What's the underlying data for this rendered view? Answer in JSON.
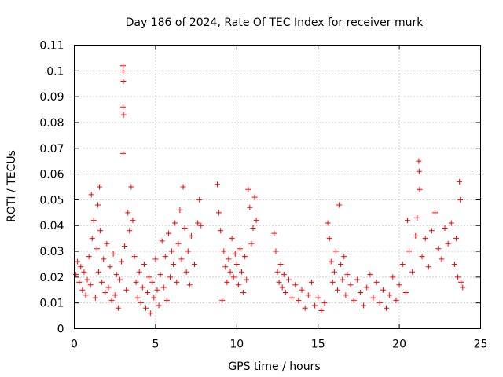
{
  "chart_data": {
    "type": "scatter",
    "title": "Day 186 of 2024, Rate Of TEC Index for receiver murk",
    "xlabel": "GPS time / hours",
    "ylabel": "ROTI / TECUs",
    "xlim": [
      0,
      25
    ],
    "ylim": [
      0,
      0.11
    ],
    "xticks": [
      "0",
      "5",
      "10",
      "15",
      "20",
      "25"
    ],
    "yticks": [
      "0",
      "0.01",
      "0.02",
      "0.03",
      "0.04",
      "0.05",
      "0.06",
      "0.07",
      "0.08",
      "0.09",
      "0.1",
      "0.11"
    ],
    "grid": true,
    "marker": "+",
    "color": "#ff0000",
    "points": [
      [
        0.1,
        0.021
      ],
      [
        0.2,
        0.026
      ],
      [
        0.3,
        0.018
      ],
      [
        0.4,
        0.024
      ],
      [
        0.5,
        0.015
      ],
      [
        0.6,
        0.022
      ],
      [
        0.7,
        0.013
      ],
      [
        0.8,
        0.019
      ],
      [
        0.9,
        0.028
      ],
      [
        1.0,
        0.017
      ],
      [
        1.05,
        0.052
      ],
      [
        1.1,
        0.035
      ],
      [
        1.2,
        0.042
      ],
      [
        1.3,
        0.012
      ],
      [
        1.4,
        0.031
      ],
      [
        1.45,
        0.048
      ],
      [
        1.5,
        0.022
      ],
      [
        1.55,
        0.055
      ],
      [
        1.6,
        0.038
      ],
      [
        1.7,
        0.018
      ],
      [
        1.8,
        0.027
      ],
      [
        1.9,
        0.014
      ],
      [
        2.0,
        0.033
      ],
      [
        2.1,
        0.016
      ],
      [
        2.2,
        0.024
      ],
      [
        2.3,
        0.011
      ],
      [
        2.4,
        0.029
      ],
      [
        2.5,
        0.013
      ],
      [
        2.6,
        0.021
      ],
      [
        2.7,
        0.008
      ],
      [
        2.8,
        0.019
      ],
      [
        2.9,
        0.026
      ],
      [
        3.0,
        0.102
      ],
      [
        3.0,
        0.1
      ],
      [
        3.02,
        0.096
      ],
      [
        3.0,
        0.086
      ],
      [
        3.03,
        0.083
      ],
      [
        3.0,
        0.068
      ],
      [
        3.1,
        0.032
      ],
      [
        3.2,
        0.015
      ],
      [
        3.3,
        0.045
      ],
      [
        3.4,
        0.038
      ],
      [
        3.5,
        0.055
      ],
      [
        3.6,
        0.042
      ],
      [
        3.7,
        0.028
      ],
      [
        3.8,
        0.018
      ],
      [
        3.9,
        0.012
      ],
      [
        4.0,
        0.022
      ],
      [
        4.1,
        0.01
      ],
      [
        4.2,
        0.016
      ],
      [
        4.3,
        0.025
      ],
      [
        4.4,
        0.008
      ],
      [
        4.5,
        0.014
      ],
      [
        4.6,
        0.02
      ],
      [
        4.7,
        0.006
      ],
      [
        4.8,
        0.018
      ],
      [
        4.9,
        0.012
      ],
      [
        5.0,
        0.027
      ],
      [
        5.1,
        0.015
      ],
      [
        5.2,
        0.009
      ],
      [
        5.3,
        0.021
      ],
      [
        5.4,
        0.034
      ],
      [
        5.5,
        0.016
      ],
      [
        5.6,
        0.028
      ],
      [
        5.7,
        0.011
      ],
      [
        5.8,
        0.037
      ],
      [
        5.9,
        0.02
      ],
      [
        6.0,
        0.03
      ],
      [
        6.1,
        0.025
      ],
      [
        6.2,
        0.041
      ],
      [
        6.3,
        0.018
      ],
      [
        6.4,
        0.033
      ],
      [
        6.5,
        0.046
      ],
      [
        6.6,
        0.027
      ],
      [
        6.7,
        0.055
      ],
      [
        6.8,
        0.039
      ],
      [
        6.9,
        0.022
      ],
      [
        7.0,
        0.03
      ],
      [
        7.1,
        0.017
      ],
      [
        7.2,
        0.036
      ],
      [
        7.4,
        0.025
      ],
      [
        7.6,
        0.041
      ],
      [
        7.7,
        0.05
      ],
      [
        7.8,
        0.04
      ],
      [
        8.8,
        0.056
      ],
      [
        8.9,
        0.045
      ],
      [
        9.0,
        0.038
      ],
      [
        9.1,
        0.011
      ],
      [
        9.2,
        0.03
      ],
      [
        9.3,
        0.024
      ],
      [
        9.4,
        0.018
      ],
      [
        9.5,
        0.027
      ],
      [
        9.6,
        0.022
      ],
      [
        9.7,
        0.035
      ],
      [
        9.8,
        0.02
      ],
      [
        9.9,
        0.029
      ],
      [
        10.0,
        0.025
      ],
      [
        10.1,
        0.017
      ],
      [
        10.2,
        0.031
      ],
      [
        10.3,
        0.022
      ],
      [
        10.4,
        0.014
      ],
      [
        10.5,
        0.028
      ],
      [
        10.6,
        0.019
      ],
      [
        10.7,
        0.054
      ],
      [
        10.8,
        0.047
      ],
      [
        10.9,
        0.033
      ],
      [
        11.0,
        0.039
      ],
      [
        11.1,
        0.051
      ],
      [
        11.2,
        0.042
      ],
      [
        12.3,
        0.037
      ],
      [
        12.4,
        0.03
      ],
      [
        12.5,
        0.022
      ],
      [
        12.6,
        0.018
      ],
      [
        12.7,
        0.025
      ],
      [
        12.8,
        0.016
      ],
      [
        12.9,
        0.021
      ],
      [
        13.0,
        0.014
      ],
      [
        13.2,
        0.019
      ],
      [
        13.4,
        0.012
      ],
      [
        13.6,
        0.017
      ],
      [
        13.8,
        0.011
      ],
      [
        14.0,
        0.015
      ],
      [
        14.2,
        0.008
      ],
      [
        14.4,
        0.013
      ],
      [
        14.6,
        0.018
      ],
      [
        14.8,
        0.009
      ],
      [
        15.0,
        0.012
      ],
      [
        15.2,
        0.007
      ],
      [
        15.4,
        0.01
      ],
      [
        15.6,
        0.041
      ],
      [
        15.7,
        0.035
      ],
      [
        15.8,
        0.026
      ],
      [
        15.9,
        0.018
      ],
      [
        16.0,
        0.022
      ],
      [
        16.1,
        0.03
      ],
      [
        16.2,
        0.015
      ],
      [
        16.3,
        0.048
      ],
      [
        16.4,
        0.025
      ],
      [
        16.5,
        0.019
      ],
      [
        16.6,
        0.028
      ],
      [
        16.7,
        0.013
      ],
      [
        16.8,
        0.021
      ],
      [
        17.0,
        0.017
      ],
      [
        17.2,
        0.011
      ],
      [
        17.4,
        0.019
      ],
      [
        17.6,
        0.014
      ],
      [
        17.8,
        0.009
      ],
      [
        18.0,
        0.016
      ],
      [
        18.2,
        0.021
      ],
      [
        18.4,
        0.012
      ],
      [
        18.6,
        0.018
      ],
      [
        18.8,
        0.01
      ],
      [
        19.0,
        0.015
      ],
      [
        19.2,
        0.008
      ],
      [
        19.4,
        0.013
      ],
      [
        19.6,
        0.02
      ],
      [
        19.8,
        0.011
      ],
      [
        20.0,
        0.017
      ],
      [
        20.2,
        0.025
      ],
      [
        20.4,
        0.014
      ],
      [
        20.5,
        0.042
      ],
      [
        20.6,
        0.03
      ],
      [
        20.8,
        0.022
      ],
      [
        21.0,
        0.036
      ],
      [
        21.1,
        0.043
      ],
      [
        21.2,
        0.065
      ],
      [
        21.22,
        0.061
      ],
      [
        21.25,
        0.054
      ],
      [
        21.4,
        0.028
      ],
      [
        21.6,
        0.035
      ],
      [
        21.8,
        0.024
      ],
      [
        22.0,
        0.038
      ],
      [
        22.2,
        0.045
      ],
      [
        22.4,
        0.031
      ],
      [
        22.6,
        0.027
      ],
      [
        22.8,
        0.039
      ],
      [
        23.0,
        0.033
      ],
      [
        23.2,
        0.041
      ],
      [
        23.4,
        0.025
      ],
      [
        23.5,
        0.035
      ],
      [
        23.6,
        0.02
      ],
      [
        23.7,
        0.057
      ],
      [
        23.75,
        0.05
      ],
      [
        23.8,
        0.018
      ],
      [
        23.9,
        0.016
      ]
    ]
  }
}
